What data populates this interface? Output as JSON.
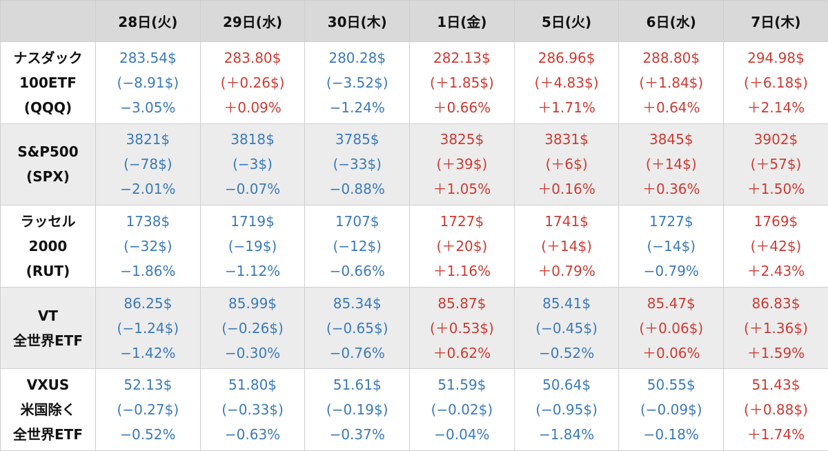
{
  "columns": [
    "28日(火)",
    "29日(水)",
    "30日(木)",
    "1日(金)",
    "5日(火)",
    "6日(水)",
    "7日(木)"
  ],
  "colors": {
    "down": "#3b7ab8",
    "up": "#cc3b33",
    "header_bg": "#d9d9d9",
    "stripe_bg": "#ececec"
  },
  "rows": [
    {
      "label": [
        "ナスダック",
        "100ETF",
        "(QQQ)"
      ],
      "cells": [
        {
          "dir": "down",
          "price": "283.54$",
          "change": "(−8.91$)",
          "pct": "−3.05%"
        },
        {
          "dir": "up",
          "price": "283.80$",
          "change": "(＋0.26$)",
          "pct": "＋0.09%"
        },
        {
          "dir": "down",
          "price": "280.28$",
          "change": "(−3.52$)",
          "pct": "−1.24%"
        },
        {
          "dir": "up",
          "price": "282.13$",
          "change": "(＋1.85$)",
          "pct": "＋0.66%"
        },
        {
          "dir": "up",
          "price": "286.96$",
          "change": "(＋4.83$)",
          "pct": "＋1.71%"
        },
        {
          "dir": "up",
          "price": "288.80$",
          "change": "(＋1.84$)",
          "pct": "＋0.64%"
        },
        {
          "dir": "up",
          "price": "294.98$",
          "change": "(＋6.18$)",
          "pct": "＋2.14%"
        }
      ]
    },
    {
      "label": [
        "S&P500",
        "(SPX)"
      ],
      "cells": [
        {
          "dir": "down",
          "price": "3821$",
          "change": "(−78$)",
          "pct": "−2.01%"
        },
        {
          "dir": "down",
          "price": "3818$",
          "change": "(−3$)",
          "pct": "−0.07%"
        },
        {
          "dir": "down",
          "price": "3785$",
          "change": "(−33$)",
          "pct": "−0.88%"
        },
        {
          "dir": "up",
          "price": "3825$",
          "change": "(＋39$)",
          "pct": "＋1.05%"
        },
        {
          "dir": "up",
          "price": "3831$",
          "change": "(＋6$)",
          "pct": "＋0.16%"
        },
        {
          "dir": "up",
          "price": "3845$",
          "change": "(＋14$)",
          "pct": "＋0.36%"
        },
        {
          "dir": "up",
          "price": "3902$",
          "change": "(＋57$)",
          "pct": "＋1.50%"
        }
      ]
    },
    {
      "label": [
        "ラッセル",
        "2000",
        "(RUT)"
      ],
      "cells": [
        {
          "dir": "down",
          "price": "1738$",
          "change": "(−32$)",
          "pct": "−1.86%"
        },
        {
          "dir": "down",
          "price": "1719$",
          "change": "(−19$)",
          "pct": "−1.12%"
        },
        {
          "dir": "down",
          "price": "1707$",
          "change": "(−12$)",
          "pct": "−0.66%"
        },
        {
          "dir": "up",
          "price": "1727$",
          "change": "(＋20$)",
          "pct": "＋1.16%"
        },
        {
          "dir": "up",
          "price": "1741$",
          "change": "(＋14$)",
          "pct": "＋0.79%"
        },
        {
          "dir": "down",
          "price": "1727$",
          "change": "(−14$)",
          "pct": "−0.79%"
        },
        {
          "dir": "up",
          "price": "1769$",
          "change": "(＋42$)",
          "pct": "＋2.43%"
        }
      ]
    },
    {
      "label": [
        "VT",
        "全世界ETF"
      ],
      "cells": [
        {
          "dir": "down",
          "price": "86.25$",
          "change": "(−1.24$)",
          "pct": "−1.42%"
        },
        {
          "dir": "down",
          "price": "85.99$",
          "change": "(−0.26$)",
          "pct": "−0.30%"
        },
        {
          "dir": "down",
          "price": "85.34$",
          "change": "(−0.65$)",
          "pct": "−0.76%"
        },
        {
          "dir": "up",
          "price": "85.87$",
          "change": "(＋0.53$)",
          "pct": "＋0.62%"
        },
        {
          "dir": "down",
          "price": "85.41$",
          "change": "(−0.45$)",
          "pct": "−0.52%"
        },
        {
          "dir": "up",
          "price": "85.47$",
          "change": "(＋0.06$)",
          "pct": "＋0.06%"
        },
        {
          "dir": "up",
          "price": "86.83$",
          "change": "(＋1.36$)",
          "pct": "＋1.59%"
        }
      ]
    },
    {
      "label": [
        "VXUS",
        "米国除く",
        "全世界ETF"
      ],
      "cells": [
        {
          "dir": "down",
          "price": "52.13$",
          "change": "(−0.27$)",
          "pct": "−0.52%"
        },
        {
          "dir": "down",
          "price": "51.80$",
          "change": "(−0.33$)",
          "pct": "−0.63%"
        },
        {
          "dir": "down",
          "price": "51.61$",
          "change": "(−0.19$)",
          "pct": "−0.37%"
        },
        {
          "dir": "down",
          "price": "51.59$",
          "change": "(−0.02$)",
          "pct": "−0.04%"
        },
        {
          "dir": "down",
          "price": "50.64$",
          "change": "(−0.95$)",
          "pct": "−1.84%"
        },
        {
          "dir": "down",
          "price": "50.55$",
          "change": "(−0.09$)",
          "pct": "−0.18%"
        },
        {
          "dir": "up",
          "price": "51.43$",
          "change": "(＋0.88$)",
          "pct": "＋1.74%"
        }
      ]
    }
  ]
}
